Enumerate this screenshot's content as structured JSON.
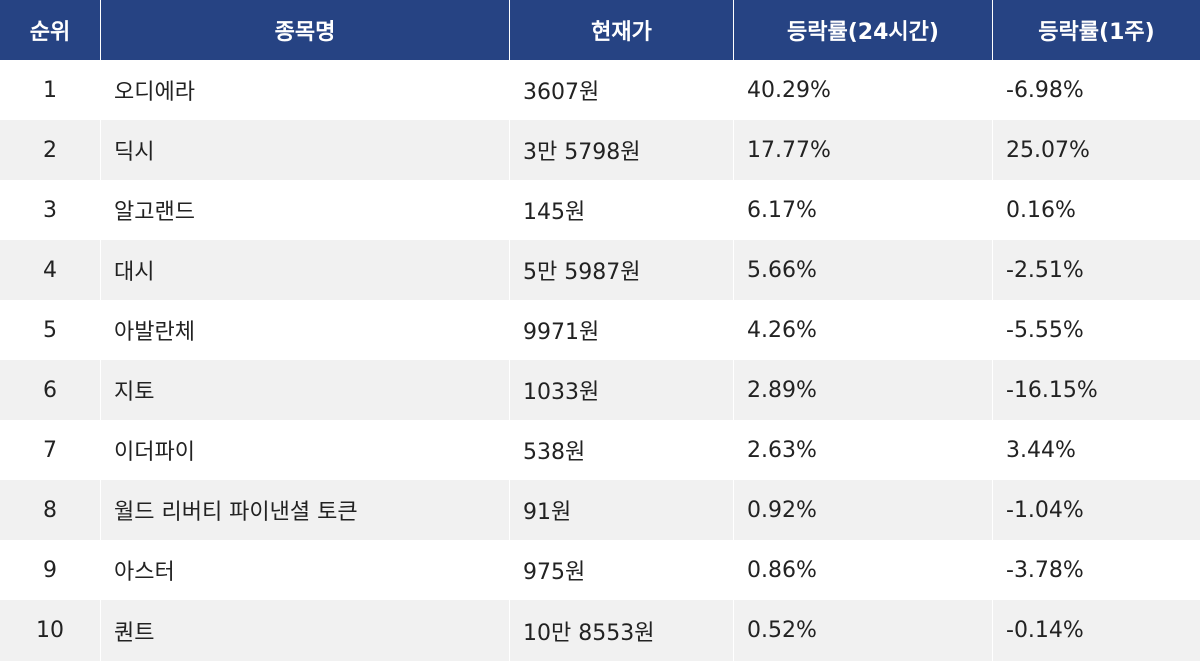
{
  "table": {
    "headers": [
      "순위",
      "종목명",
      "현재가",
      "등락률(24시간)",
      "등락률(1주)"
    ],
    "rows": [
      {
        "rank": "1",
        "name": "오디에라",
        "price": "3607원",
        "change_24h": "40.29%",
        "change_1w": "-6.98%"
      },
      {
        "rank": "2",
        "name": "딕시",
        "price": "3만 5798원",
        "change_24h": "17.77%",
        "change_1w": "25.07%"
      },
      {
        "rank": "3",
        "name": "알고랜드",
        "price": "145원",
        "change_24h": "6.17%",
        "change_1w": "0.16%"
      },
      {
        "rank": "4",
        "name": "대시",
        "price": "5만 5987원",
        "change_24h": "5.66%",
        "change_1w": "-2.51%"
      },
      {
        "rank": "5",
        "name": "아발란체",
        "price": "9971원",
        "change_24h": "4.26%",
        "change_1w": "-5.55%"
      },
      {
        "rank": "6",
        "name": "지토",
        "price": "1033원",
        "change_24h": "2.89%",
        "change_1w": "-16.15%"
      },
      {
        "rank": "7",
        "name": "이더파이",
        "price": "538원",
        "change_24h": "2.63%",
        "change_1w": "3.44%"
      },
      {
        "rank": "8",
        "name": "월드 리버티 파이낸셜 토큰",
        "price": "91원",
        "change_24h": "0.92%",
        "change_1w": "-1.04%"
      },
      {
        "rank": "9",
        "name": "아스터",
        "price": "975원",
        "change_24h": "0.86%",
        "change_1w": "-3.78%"
      },
      {
        "rank": "10",
        "name": "퀀트",
        "price": "10만 8553원",
        "change_24h": "0.52%",
        "change_1w": "-0.14%"
      }
    ]
  },
  "colors": {
    "header_bg": "#264383",
    "header_text": "#ffffff",
    "row_alt_bg": "#f1f1f1"
  }
}
